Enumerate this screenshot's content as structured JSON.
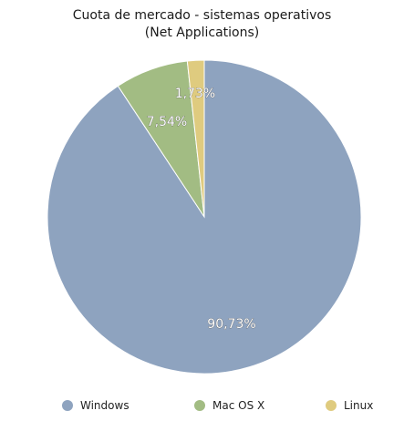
{
  "chart_data": {
    "type": "pie",
    "title_line1": "Cuota de mercado - sistemas operativos",
    "title_line2": "(Net Applications)",
    "legend_placement": "bottom",
    "slices": [
      {
        "name": "Windows",
        "value": 90.73,
        "label": "90,73%",
        "color": "#8ea3bf"
      },
      {
        "name": "Mac OS X",
        "value": 7.54,
        "label": "7,54%",
        "color": "#a2bc83"
      },
      {
        "name": "Linux",
        "value": 1.73,
        "label": "1,73%",
        "color": "#dfcb7f"
      }
    ]
  }
}
